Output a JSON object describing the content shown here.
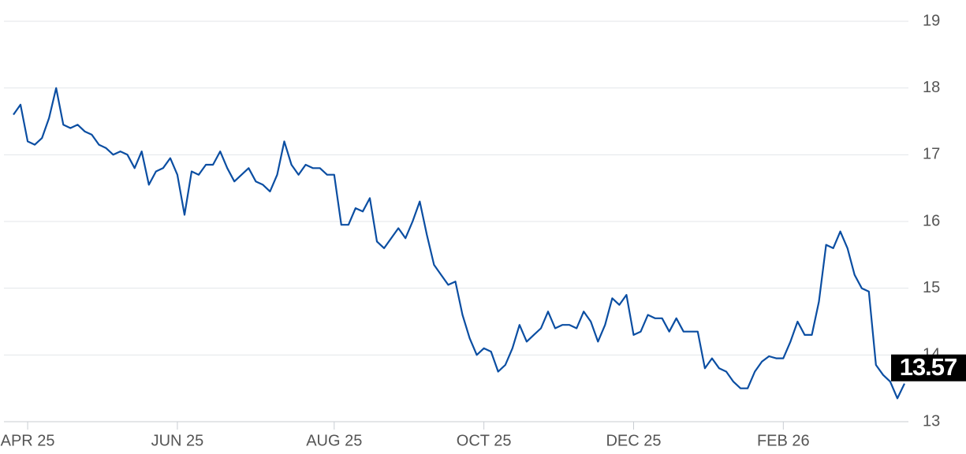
{
  "chart_data": {
    "type": "line",
    "color": "#0b4ea2",
    "grid": true,
    "ylim": [
      13,
      19
    ],
    "yticks": [
      13,
      14,
      15,
      16,
      17,
      18,
      19
    ],
    "categories": [
      null,
      null,
      "APR 25",
      null,
      null,
      null,
      null,
      null,
      null,
      null,
      null,
      null,
      null,
      null,
      null,
      null,
      null,
      null,
      null,
      null,
      null,
      null,
      null,
      "JUN 25",
      null,
      null,
      null,
      null,
      null,
      null,
      null,
      null,
      null,
      null,
      null,
      null,
      null,
      null,
      null,
      null,
      null,
      null,
      null,
      null,
      null,
      "AUG 25",
      null,
      null,
      null,
      null,
      null,
      null,
      null,
      null,
      null,
      null,
      null,
      null,
      null,
      null,
      null,
      null,
      null,
      null,
      null,
      null,
      "OCT 25",
      null,
      null,
      null,
      null,
      null,
      null,
      null,
      null,
      null,
      null,
      null,
      null,
      null,
      null,
      null,
      null,
      null,
      null,
      null,
      null,
      "DEC 25",
      null,
      null,
      null,
      null,
      null,
      null,
      null,
      null,
      null,
      null,
      null,
      null,
      null,
      null,
      null,
      null,
      null,
      null,
      null,
      null,
      "FEB 26",
      null,
      null,
      null,
      null,
      null,
      null,
      null,
      null,
      null,
      null,
      null,
      null,
      null,
      null,
      null,
      null,
      null
    ],
    "values": [
      17.6,
      17.75,
      17.2,
      17.15,
      17.25,
      17.55,
      18.0,
      17.45,
      17.4,
      17.45,
      17.35,
      17.3,
      17.15,
      17.1,
      17.0,
      17.05,
      17.0,
      16.8,
      17.05,
      16.55,
      16.75,
      16.8,
      16.95,
      16.7,
      16.1,
      16.75,
      16.7,
      16.85,
      16.85,
      17.05,
      16.8,
      16.6,
      16.7,
      16.8,
      16.6,
      16.55,
      16.45,
      16.7,
      17.2,
      16.85,
      16.7,
      16.85,
      16.8,
      16.8,
      16.7,
      16.7,
      15.95,
      15.95,
      16.2,
      16.15,
      16.35,
      15.7,
      15.6,
      15.75,
      15.9,
      15.75,
      16.0,
      16.3,
      15.8,
      15.35,
      15.2,
      15.05,
      15.1,
      14.6,
      14.25,
      14.0,
      14.1,
      14.05,
      13.75,
      13.85,
      14.1,
      14.45,
      14.2,
      14.3,
      14.4,
      14.65,
      14.4,
      14.45,
      14.45,
      14.4,
      14.65,
      14.5,
      14.2,
      14.45,
      14.85,
      14.75,
      14.9,
      14.3,
      14.35,
      14.6,
      14.55,
      14.55,
      14.35,
      14.55,
      14.35,
      14.35,
      14.35,
      13.8,
      13.95,
      13.8,
      13.75,
      13.6,
      13.5,
      13.5,
      13.75,
      13.9,
      13.98,
      13.95,
      13.95,
      14.2,
      14.5,
      14.3,
      14.3,
      14.8,
      15.65,
      15.6,
      15.85,
      15.6,
      15.2,
      15.0,
      14.95,
      13.85,
      13.7,
      13.6,
      13.35,
      13.57
    ]
  }
}
